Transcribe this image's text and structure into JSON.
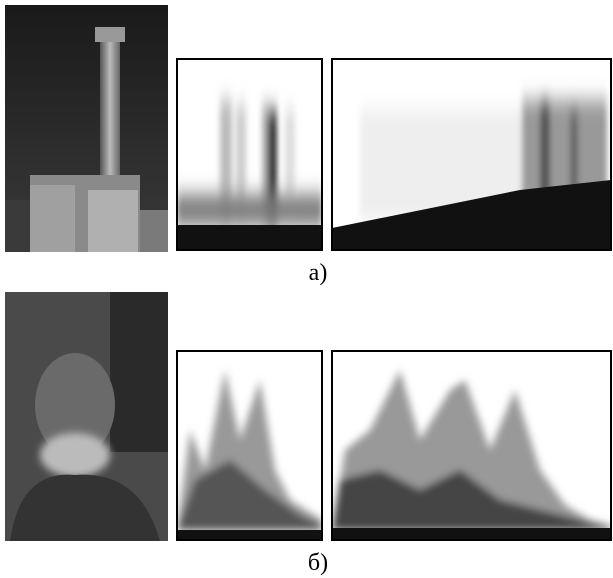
{
  "labels": {
    "a": "а)",
    "b": "б)"
  }
}
